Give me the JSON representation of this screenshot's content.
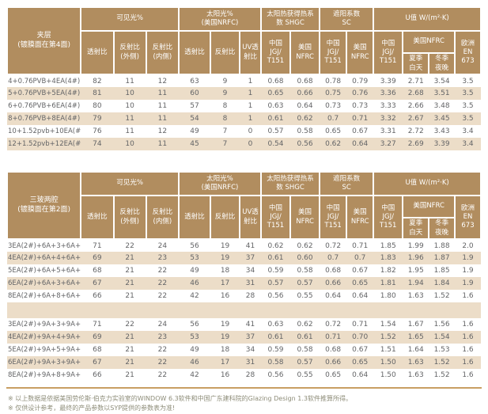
{
  "colors": {
    "header_bg": "#b18d5f",
    "stripe_bg": "#ecddc8",
    "body_text": "#636466",
    "note_text": "#8d8c78",
    "divider": "#c99f63"
  },
  "header_labels": {
    "visible_light": "可见光%",
    "solar": "太阳光%\n(美国NRFC)",
    "shgc": "太阳热获得热系\n数 SHGC",
    "sc": "遮阳系数\nSC",
    "uvalue": "U值 W/(m²·K)",
    "trans": "透射比",
    "refl_out": "反射比\n(外侧)",
    "refl_in": "反射比\n(内侧)",
    "refl": "反射比",
    "uv_trans": "UV透\n射比",
    "china_jgj": "中国\nJGJ/\nT151",
    "us_nfrc": "美国\nNFRC",
    "us_nfrc_group": "美国NFRC",
    "summer_day": "夏季\n白天",
    "winter_night": "冬季\n夜晚",
    "eu_en673": "欧洲\nEN\n673"
  },
  "tables": [
    {
      "title": "夹层\n(镀膜面在第4面)",
      "groups": [
        {
          "rows": [
            [
              "4+0.76PVB+4EA(4#)",
              "82",
              "11",
              "12",
              "63",
              "9",
              "1",
              "0.68",
              "0.68",
              "0.78",
              "0.79",
              "3.39",
              "2.71",
              "3.54",
              "3.5"
            ],
            [
              "5+0.76PVB+5EA(4#)",
              "81",
              "10",
              "11",
              "60",
              "9",
              "1",
              "0.65",
              "0.66",
              "0.75",
              "0.76",
              "3.36",
              "2.68",
              "3.51",
              "3.5"
            ],
            [
              "6+0.76PVB+6EA(4#)",
              "80",
              "10",
              "11",
              "57",
              "8",
              "1",
              "0.63",
              "0.64",
              "0.73",
              "0.73",
              "3.33",
              "2.66",
              "3.48",
              "3.5"
            ],
            [
              "8+0.76PVB+8EA(4#)",
              "79",
              "11",
              "11",
              "54",
              "8",
              "1",
              "0.61",
              "0.62",
              "0.7",
              "0.71",
              "3.32",
              "2.67",
              "3.45",
              "3.5"
            ],
            [
              "10+1.52pvb+10EA(#4)",
              "76",
              "11",
              "12",
              "49",
              "7",
              "0",
              "0.57",
              "0.58",
              "0.65",
              "0.67",
              "3.31",
              "2.72",
              "3.43",
              "3.4"
            ],
            [
              "12+1.52pvb+12EA(#4)",
              "74",
              "10",
              "11",
              "45",
              "7",
              "0",
              "0.54",
              "0.56",
              "0.62",
              "0.64",
              "3.27",
              "2.69",
              "3.39",
              "3.4"
            ]
          ]
        }
      ]
    },
    {
      "title": "三玻两腔\n(镀膜面在第2面)",
      "groups": [
        {
          "rows": [
            [
              "3EA(2#)+6A+3+6A+3",
              "71",
              "22",
              "24",
              "56",
              "19",
              "41",
              "0.62",
              "0.62",
              "0.72",
              "0.71",
              "1.85",
              "1.99",
              "1.88",
              "2.0"
            ],
            [
              "4EA(2#)+6A+4+6A+4",
              "69",
              "21",
              "23",
              "53",
              "19",
              "37",
              "0.61",
              "0.60",
              "0.7",
              "0.7",
              "1.83",
              "1.96",
              "1.87",
              "1.9"
            ],
            [
              "5EA(2#)+6A+5+6A+5",
              "68",
              "21",
              "22",
              "49",
              "18",
              "34",
              "0.59",
              "0.58",
              "0.68",
              "0.67",
              "1.82",
              "1.95",
              "1.85",
              "1.9"
            ],
            [
              "6EA(2#)+6A+3+6A+6",
              "67",
              "21",
              "22",
              "46",
              "17",
              "31",
              "0.57",
              "0.57",
              "0.66",
              "0.65",
              "1.81",
              "1.94",
              "1.84",
              "1.9"
            ],
            [
              "8EA(2#)+6A+8+6A+8",
              "66",
              "21",
              "22",
              "42",
              "16",
              "28",
              "0.56",
              "0.55",
              "0.64",
              "0.64",
              "1.80",
              "1.63",
              "1.52",
              "1.6"
            ]
          ]
        },
        {
          "rows": [
            [
              "3EA(2#)+9A+3+9A+3",
              "71",
              "22",
              "24",
              "56",
              "19",
              "41",
              "0.63",
              "0.62",
              "0.72",
              "0.71",
              "1.54",
              "1.67",
              "1.56",
              "1.6"
            ],
            [
              "4EA(2#)+9A+4+9A+4",
              "69",
              "21",
              "23",
              "53",
              "19",
              "37",
              "0.61",
              "0.61",
              "0.71",
              "0.70",
              "1.52",
              "1.65",
              "1.54",
              "1.6"
            ],
            [
              "5EA(2#)+9A+5+9A+5",
              "68",
              "21",
              "22",
              "49",
              "18",
              "34",
              "0.59",
              "0.58",
              "0.68",
              "0.67",
              "1.51",
              "1.64",
              "1.53",
              "1.6"
            ],
            [
              "6EA(2#)+9A+3+9A+6",
              "67",
              "21",
              "22",
              "46",
              "17",
              "31",
              "0.58",
              "0.57",
              "0.66",
              "0.65",
              "1.50",
              "1.63",
              "1.52",
              "1.6"
            ],
            [
              "8EA(2#)+9A+8+9A+8",
              "66",
              "21",
              "22",
              "42",
              "16",
              "28",
              "0.56",
              "0.55",
              "0.65",
              "0.64",
              "1.50",
              "1.63",
              "1.52",
              "1.6"
            ]
          ]
        }
      ]
    }
  ],
  "notes": [
    "※ 以上数据是依据美国劳伦斯·伯克力实验室的WINDOW 6.3软件和中国广东建科院的Glazing Design 1.3软件推算所得。",
    "※ 仅供设计参考，最终的产品参数以SYP提供的参数表为准!"
  ]
}
